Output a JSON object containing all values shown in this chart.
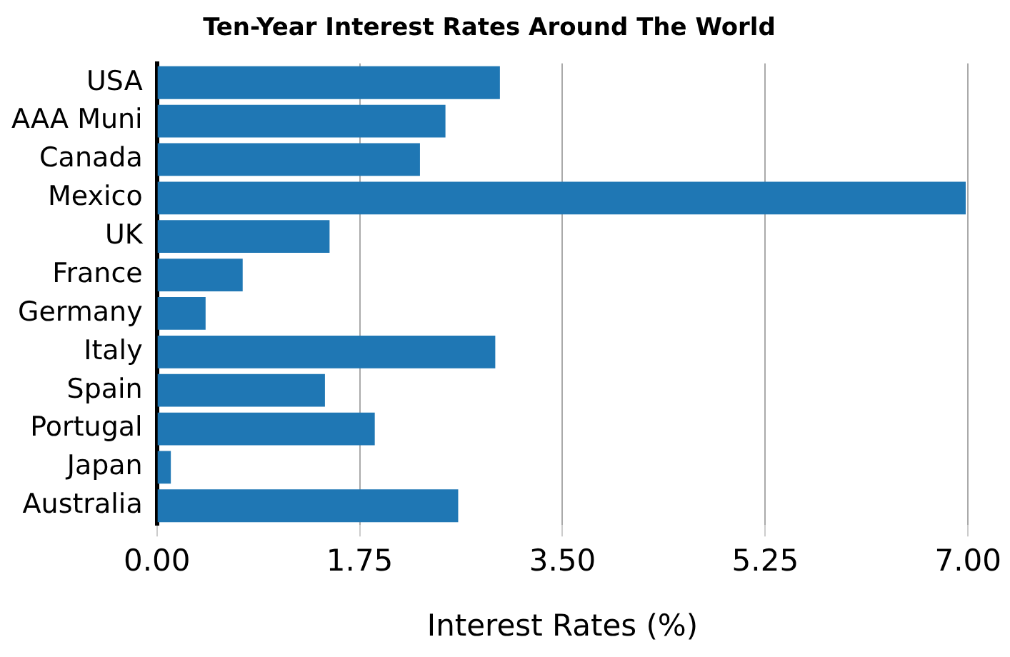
{
  "chart_data": {
    "type": "bar",
    "orientation": "horizontal",
    "title": "Ten-Year Interest Rates Around The World",
    "xlabel": "Interest Rates (%)",
    "categories": [
      "USA",
      "AAA Muni",
      "Canada",
      "Mexico",
      "UK",
      "France",
      "Germany",
      "Italy",
      "Spain",
      "Portugal",
      "Japan",
      "Australia"
    ],
    "values": [
      2.96,
      2.49,
      2.27,
      6.98,
      1.49,
      0.74,
      0.42,
      2.92,
      1.45,
      1.88,
      0.12,
      2.6
    ],
    "color": "#1f77b4",
    "xlim": [
      0,
      7
    ],
    "xticks": [
      {
        "value": 0,
        "label": "0.00"
      },
      1.75,
      {
        "value": 3.5,
        "label": "3.50"
      },
      5.25,
      {
        "value": 7,
        "label": "7.00"
      }
    ],
    "grid": "x",
    "legend": false
  }
}
